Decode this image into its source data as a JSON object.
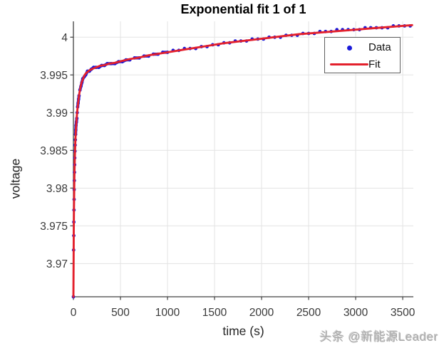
{
  "figure_title": "Exponential fit 1 of 1",
  "watermark_text": "头条 @新能源Leader",
  "colors": {
    "data_blue": "#1a1ad9",
    "fit_red": "#e3202c",
    "grid": "#e3e3e3",
    "axis": "#404040",
    "tick_text": "#3a3a3a",
    "title_text": "#000000",
    "legend_border": "#5f5f5f",
    "watermark_gray": "#ababab"
  },
  "chart_data": {
    "type": "scatter",
    "title": "Exponential fit 1 of 1",
    "xlabel": "time (s)",
    "ylabel": "voltage",
    "xlim": [
      0,
      3613
    ],
    "ylim": [
      3.9656,
      4.0021
    ],
    "grid": true,
    "x_ticks": [
      0,
      500,
      1000,
      1500,
      2000,
      2500,
      3000,
      3500
    ],
    "x_tick_labels": [
      "0",
      "500",
      "1000",
      "1500",
      "2000",
      "2500",
      "3000",
      "3500"
    ],
    "y_ticks": [
      3.97,
      3.975,
      3.98,
      3.985,
      3.99,
      3.995,
      4
    ],
    "y_tick_labels": [
      "3.97",
      "3.975",
      "3.98",
      "3.985",
      "3.99",
      "3.995",
      "4"
    ],
    "legend": {
      "position": "northeast",
      "entries": [
        {
          "label": "Data",
          "marker": "dot",
          "color": "#1a1ad9"
        },
        {
          "label": "Fit",
          "marker": "line",
          "color": "#e3202c"
        }
      ]
    },
    "series": [
      {
        "name": "Data",
        "type": "scatter",
        "color": "#1a1ad9",
        "points": [
          [
            0,
            3.9656
          ],
          [
            2.5,
            3.9718
          ],
          [
            3.5,
            3.9737
          ],
          [
            4.7,
            3.9755
          ],
          [
            6,
            3.9771
          ],
          [
            7.3,
            3.9785
          ],
          [
            8.7,
            3.9798
          ],
          [
            10,
            3.981
          ],
          [
            11.5,
            3.9821
          ],
          [
            13,
            3.9831
          ],
          [
            14.7,
            3.984
          ],
          [
            16.5,
            3.9849
          ],
          [
            18.5,
            3.9857
          ],
          [
            20.6,
            3.9864
          ],
          [
            23,
            3.9871
          ],
          [
            25.3,
            3.9877
          ],
          [
            27.6,
            3.9883
          ],
          [
            32,
            3.98875
          ],
          [
            36,
            3.98925
          ],
          [
            40,
            3.99
          ],
          [
            45,
            3.99075
          ],
          [
            50,
            3.99125
          ],
          [
            55,
            3.9918
          ],
          [
            60,
            3.99225
          ],
          [
            70,
            3.993
          ],
          [
            80,
            3.9935
          ],
          [
            90,
            3.994
          ],
          [
            100,
            3.9945
          ],
          [
            115,
            3.99475
          ],
          [
            130,
            3.995
          ],
          [
            150,
            3.9955
          ],
          [
            170,
            3.9955
          ],
          [
            190,
            3.99575
          ],
          [
            215,
            3.996
          ],
          [
            240,
            3.996
          ],
          [
            270,
            3.996
          ],
          [
            300,
            3.99625
          ],
          [
            330,
            3.99625
          ],
          [
            360,
            3.9965
          ],
          [
            400,
            3.9965
          ],
          [
            440,
            3.9965
          ],
          [
            480,
            3.99675
          ],
          [
            520,
            3.99675
          ],
          [
            560,
            3.997
          ],
          [
            600,
            3.997
          ],
          [
            650,
            3.99725
          ],
          [
            700,
            3.99725
          ],
          [
            750,
            3.9975
          ],
          [
            800,
            3.9975
          ],
          [
            850,
            3.99775
          ],
          [
            900,
            3.99775
          ],
          [
            950,
            3.998
          ],
          [
            1000,
            3.998
          ],
          [
            1060,
            3.99825
          ],
          [
            1120,
            3.99825
          ],
          [
            1180,
            3.9985
          ],
          [
            1240,
            3.9985
          ],
          [
            1300,
            3.9985
          ],
          [
            1360,
            3.99875
          ],
          [
            1420,
            3.99875
          ],
          [
            1480,
            3.999
          ],
          [
            1540,
            3.999
          ],
          [
            1600,
            3.99925
          ],
          [
            1660,
            3.99925
          ],
          [
            1720,
            3.9995
          ],
          [
            1780,
            3.9995
          ],
          [
            1840,
            3.9995
          ],
          [
            1900,
            3.99975
          ],
          [
            1960,
            3.99975
          ],
          [
            2020,
            3.99975
          ],
          [
            2080,
            4
          ],
          [
            2140,
            4
          ],
          [
            2200,
            4
          ],
          [
            2260,
            4.00025
          ],
          [
            2320,
            4.00025
          ],
          [
            2380,
            4.00025
          ],
          [
            2440,
            4.0005
          ],
          [
            2500,
            4.0005
          ],
          [
            2560,
            4.0005
          ],
          [
            2620,
            4.00075
          ],
          [
            2680,
            4.00075
          ],
          [
            2740,
            4.00075
          ],
          [
            2800,
            4.001
          ],
          [
            2860,
            4.001
          ],
          [
            2920,
            4.001
          ],
          [
            2980,
            4.001
          ],
          [
            3040,
            4.001
          ],
          [
            3100,
            4.00125
          ],
          [
            3160,
            4.00125
          ],
          [
            3220,
            4.00125
          ],
          [
            3280,
            4.00125
          ],
          [
            3340,
            4.00125
          ],
          [
            3400,
            4.0015
          ],
          [
            3460,
            4.0015
          ],
          [
            3520,
            4.0015
          ],
          [
            3580,
            4.0015
          ]
        ]
      },
      {
        "name": "Fit",
        "type": "line",
        "color": "#e3202c",
        "points": [
          [
            0,
            3.9656
          ],
          [
            2,
            3.9706
          ],
          [
            4,
            3.9744
          ],
          [
            6,
            3.9772
          ],
          [
            8,
            3.9794
          ],
          [
            10,
            3.9811
          ],
          [
            12,
            3.9825
          ],
          [
            15,
            3.9841
          ],
          [
            18,
            3.9853
          ],
          [
            22,
            3.9866
          ],
          [
            26,
            3.9876
          ],
          [
            30,
            3.9885
          ],
          [
            35,
            3.9893
          ],
          [
            40,
            3.9901
          ],
          [
            50,
            3.9913
          ],
          [
            60,
            3.9923
          ],
          [
            70,
            3.993
          ],
          [
            85,
            3.9939
          ],
          [
            100,
            3.9944
          ],
          [
            120,
            3.995
          ],
          [
            140,
            3.9953
          ],
          [
            170,
            3.9956
          ],
          [
            200,
            3.9958
          ],
          [
            240,
            3.996
          ],
          [
            280,
            3.9962
          ],
          [
            330,
            3.9963
          ],
          [
            380,
            3.9965
          ],
          [
            440,
            3.9966
          ],
          [
            500,
            3.9968
          ],
          [
            600,
            3.9971
          ],
          [
            700,
            3.9973
          ],
          [
            800,
            3.9976
          ],
          [
            900,
            3.9978
          ],
          [
            1000,
            3.998
          ],
          [
            1200,
            3.9984
          ],
          [
            1400,
            3.9988
          ],
          [
            1600,
            3.9992
          ],
          [
            1800,
            3.9995
          ],
          [
            2000,
            3.9998
          ],
          [
            2200,
            4.0001
          ],
          [
            2400,
            4.0004
          ],
          [
            2600,
            4.0006
          ],
          [
            2800,
            4.0008
          ],
          [
            3000,
            4.001
          ],
          [
            3200,
            4.0012
          ],
          [
            3400,
            4.0014
          ],
          [
            3600,
            4.0016
          ]
        ]
      }
    ]
  }
}
